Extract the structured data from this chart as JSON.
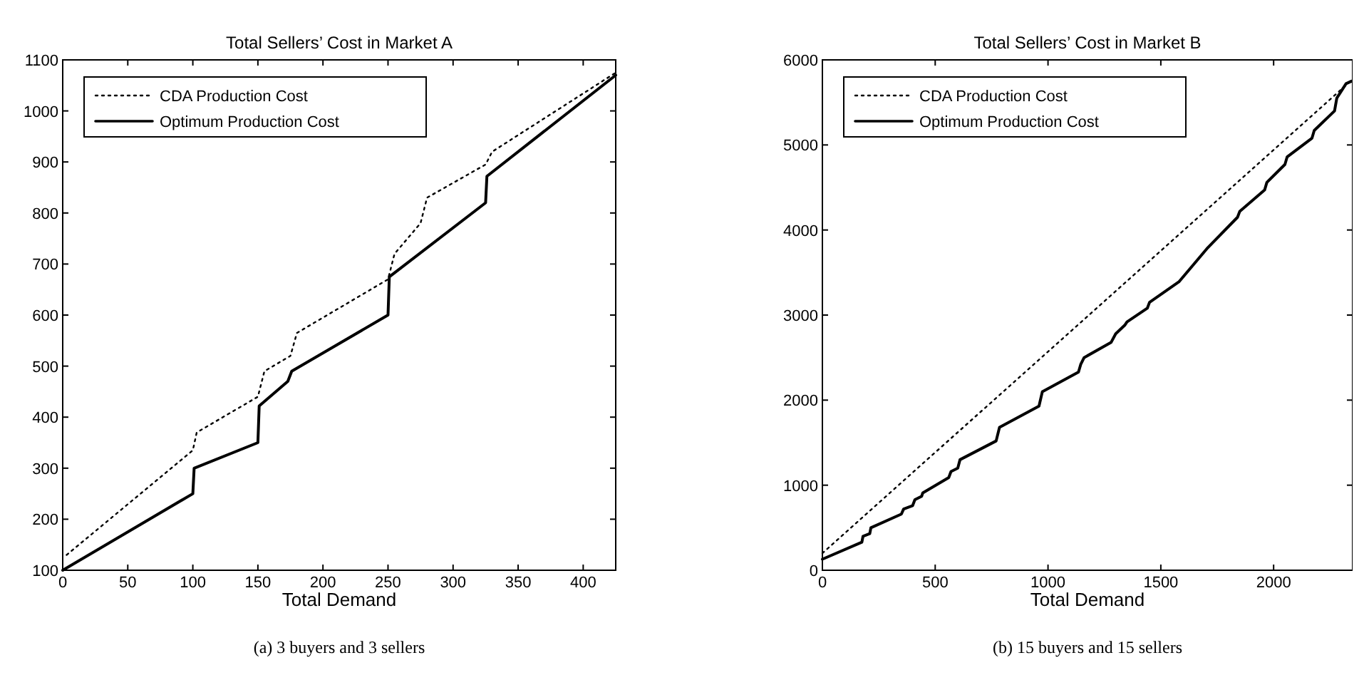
{
  "chart_data": [
    {
      "type": "line",
      "title": "Total Sellers’ Cost in Market A",
      "xlabel": "Total Demand",
      "xlim": [
        0,
        425
      ],
      "xticks": [
        0,
        50,
        100,
        150,
        200,
        250,
        300,
        350,
        400
      ],
      "ylim": [
        100,
        1100
      ],
      "yticks": [
        100,
        200,
        300,
        400,
        500,
        600,
        700,
        800,
        900,
        1000,
        1100
      ],
      "grid": false,
      "legend": "top left",
      "annotations": [
        "(a)  3 buyers and 3 sellers"
      ],
      "series": [
        {
          "name": "CDA Production Cost",
          "color": "#000000",
          "line_style": "dotted",
          "x": [
            3,
            100,
            103,
            150,
            155,
            175,
            180,
            250,
            255,
            275,
            280,
            325,
            330,
            425
          ],
          "values": [
            130,
            335,
            370,
            440,
            490,
            520,
            565,
            670,
            720,
            780,
            830,
            895,
            920,
            1075
          ]
        },
        {
          "name": "Optimum Production Cost",
          "color": "#000000",
          "line_style": "solid",
          "x": [
            0,
            100,
            101,
            150,
            151,
            173,
            176,
            250,
            251,
            325,
            326,
            425
          ],
          "values": [
            100,
            250,
            300,
            350,
            422,
            470,
            490,
            600,
            675,
            820,
            872,
            1070
          ]
        }
      ]
    },
    {
      "type": "line",
      "title": "Total Sellers’ Cost in Market B",
      "xlabel": "Total Demand",
      "xlim": [
        0,
        2350
      ],
      "xticks": [
        0,
        500,
        1000,
        1500,
        2000
      ],
      "ylim": [
        0,
        6000
      ],
      "yticks": [
        0,
        1000,
        2000,
        3000,
        4000,
        5000,
        6000
      ],
      "grid": false,
      "legend": "top left",
      "annotations": [
        "(b)  15 buyers and 15 sellers"
      ],
      "series": [
        {
          "name": "CDA Production Cost",
          "color": "#000000",
          "line_style": "dotted",
          "x": [
            0,
            1270,
            2345
          ],
          "values": [
            200,
            3210,
            5760
          ]
        },
        {
          "name": "Optimum Production Cost",
          "color": "#000000",
          "line_style": "solid",
          "x": [
            0,
            175,
            180,
            210,
            215,
            350,
            360,
            400,
            410,
            440,
            445,
            560,
            570,
            600,
            610,
            770,
            785,
            960,
            975,
            1135,
            1145,
            1160,
            1280,
            1300,
            1340,
            1350,
            1440,
            1450,
            1580,
            1704,
            1840,
            1850,
            1960,
            1970,
            2050,
            2060,
            2170,
            2180,
            2270,
            2280,
            2321,
            2345
          ],
          "values": [
            130,
            330,
            400,
            430,
            500,
            660,
            720,
            760,
            830,
            870,
            910,
            1090,
            1160,
            1200,
            1300,
            1520,
            1680,
            1930,
            2100,
            2330,
            2420,
            2500,
            2680,
            2780,
            2880,
            2920,
            3080,
            3150,
            3390,
            3780,
            4150,
            4220,
            4470,
            4560,
            4770,
            4860,
            5080,
            5170,
            5400,
            5550,
            5720,
            5750
          ]
        }
      ]
    }
  ]
}
